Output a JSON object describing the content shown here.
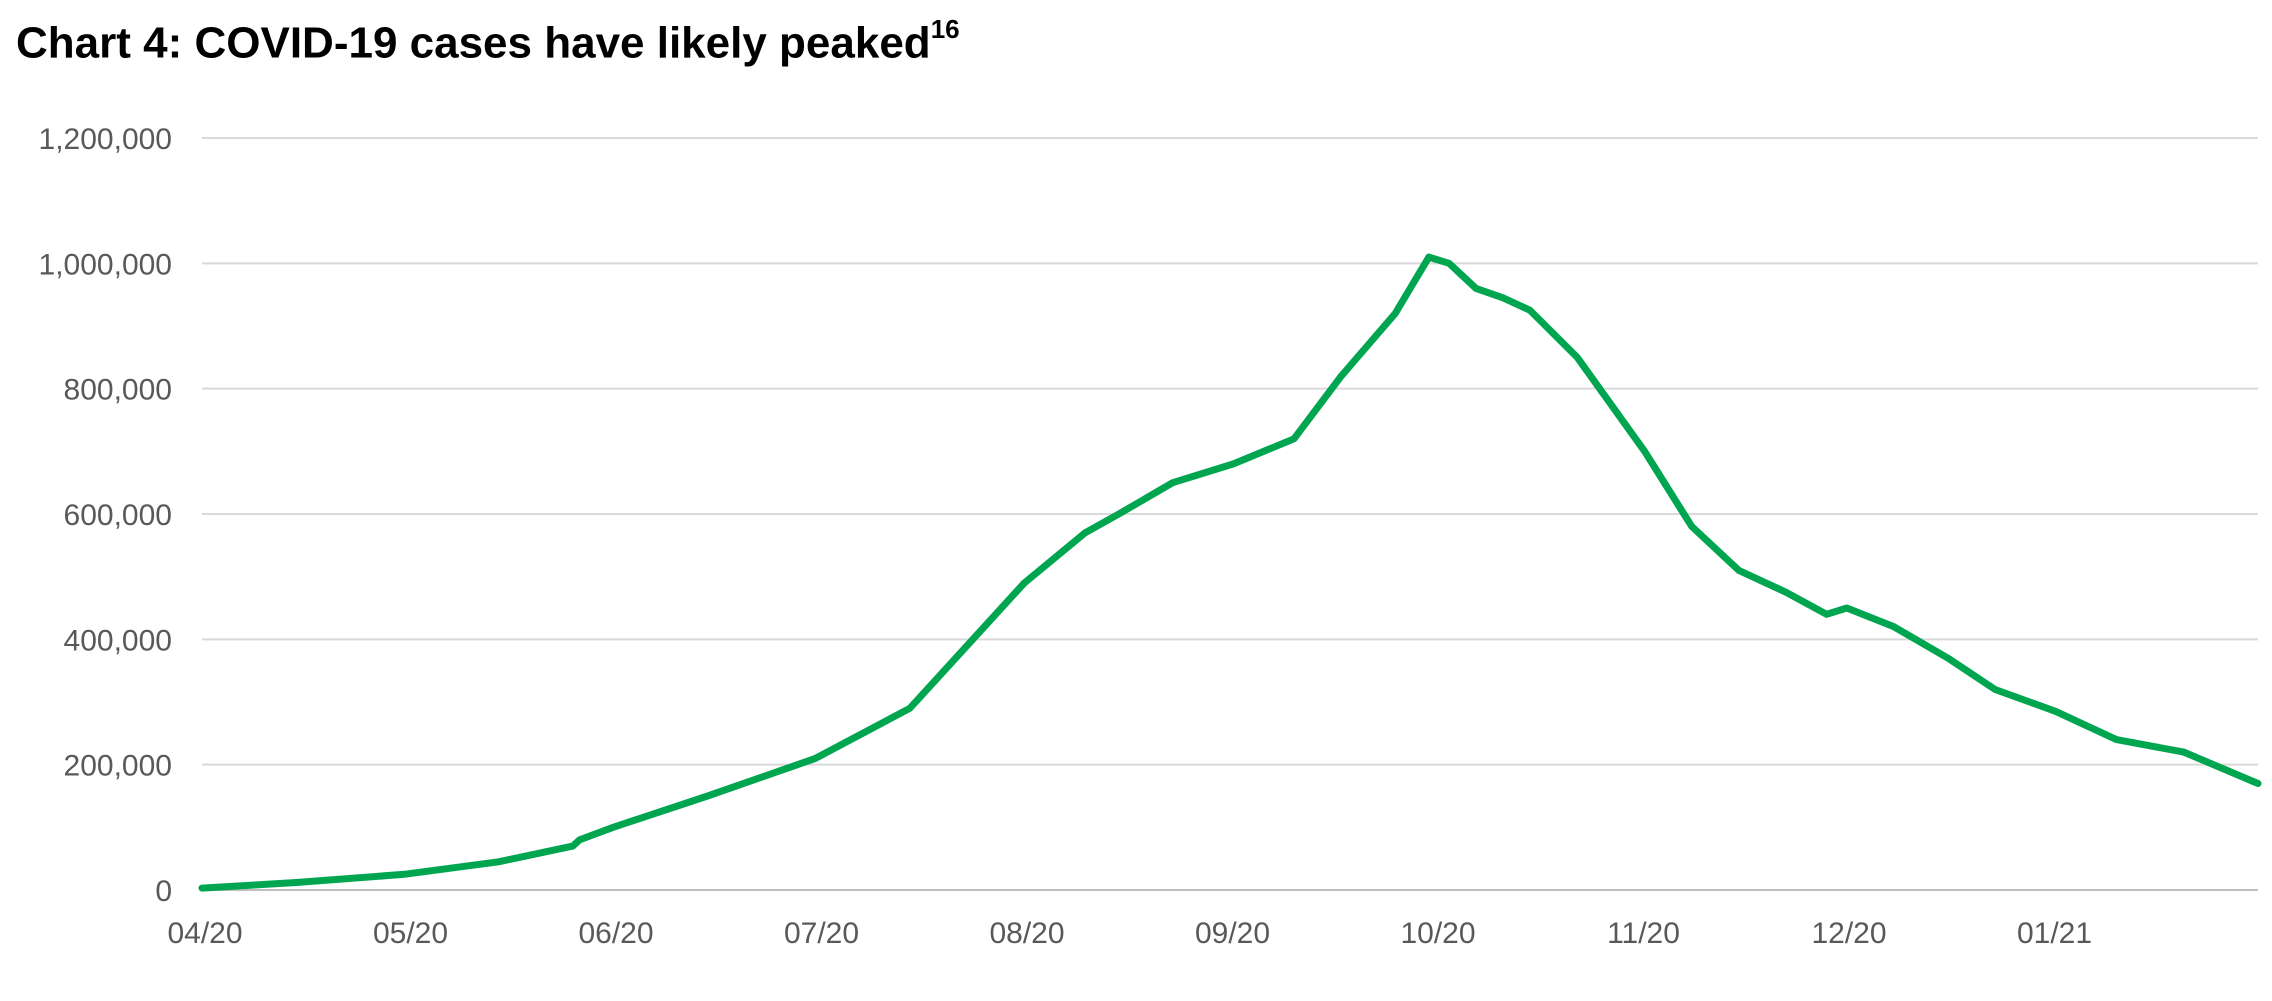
{
  "title": {
    "text": "Chart 4: COVID-19 cases have likely peaked",
    "superscript": "16"
  },
  "colors": {
    "line": "#00A550",
    "grid": "#d9d9d9",
    "axis": "#bfbfbf",
    "tick_text": "#595959"
  },
  "chart_data": {
    "type": "line",
    "title": "Chart 4: COVID-19 cases have likely peaked",
    "xlabel": "",
    "ylabel": "",
    "ylim": [
      0,
      1200000
    ],
    "grid": true,
    "legend": "none",
    "y_ticks": [
      0,
      200000,
      400000,
      600000,
      800000,
      1000000,
      1200000
    ],
    "y_tick_labels": [
      "0",
      "200,000",
      "400,000",
      "600,000",
      "800,000",
      "1,000,000",
      "1,200,000"
    ],
    "x_tick_labels": [
      "04/20",
      "05/20",
      "06/20",
      "07/20",
      "08/20",
      "09/20",
      "10/20",
      "11/20",
      "12/20",
      "01/21"
    ],
    "x": [
      "2020-04-01",
      "2020-04-15",
      "2020-05-01",
      "2020-05-15",
      "2020-05-26",
      "2020-05-27",
      "2020-06-01",
      "2020-06-15",
      "2020-07-01",
      "2020-07-15",
      "2020-08-01",
      "2020-08-10",
      "2020-08-15",
      "2020-08-23",
      "2020-09-01",
      "2020-09-10",
      "2020-09-17",
      "2020-09-25",
      "2020-09-30",
      "2020-10-03",
      "2020-10-07",
      "2020-10-11",
      "2020-10-15",
      "2020-10-22",
      "2020-11-01",
      "2020-11-08",
      "2020-11-15",
      "2020-11-22",
      "2020-11-28",
      "2020-12-01",
      "2020-12-08",
      "2020-12-16",
      "2020-12-23",
      "2021-01-01",
      "2021-01-10",
      "2021-01-20",
      "2021-01-31"
    ],
    "series": [
      {
        "name": "",
        "values": [
          3000,
          12000,
          25000,
          45000,
          70000,
          80000,
          100000,
          150000,
          210000,
          290000,
          490000,
          570000,
          600000,
          650000,
          680000,
          720000,
          820000,
          920000,
          1010000,
          1000000,
          960000,
          945000,
          925000,
          850000,
          700000,
          580000,
          510000,
          475000,
          440000,
          450000,
          420000,
          370000,
          320000,
          285000,
          240000,
          220000,
          170000
        ]
      }
    ]
  }
}
